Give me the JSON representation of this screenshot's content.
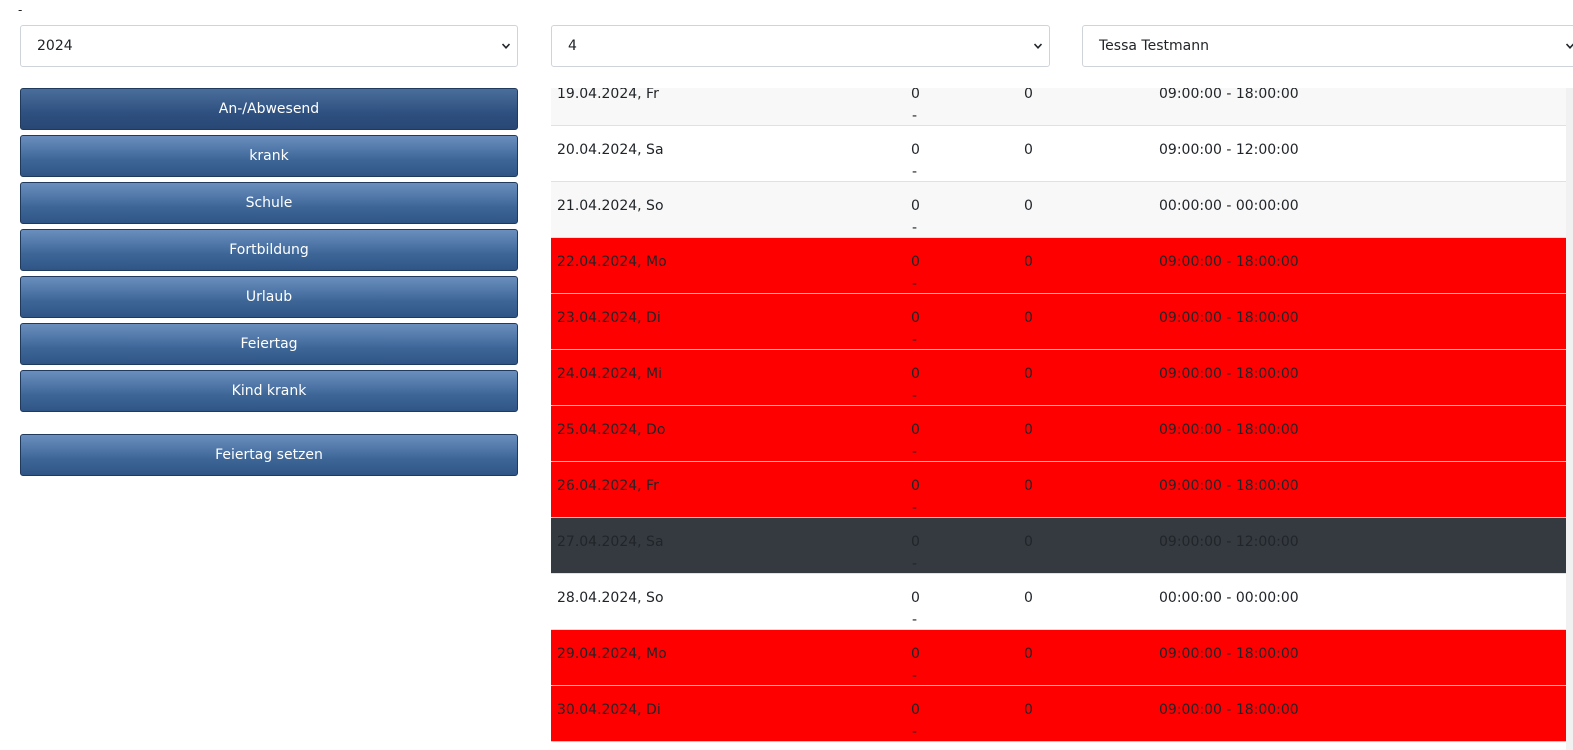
{
  "top_mark": "-",
  "filters": {
    "year": "2024",
    "month": "4",
    "employee": "Tessa Testmann"
  },
  "buttons": [
    {
      "label": "An-/Abwesend",
      "name": "presence-button",
      "active": true
    },
    {
      "label": "krank",
      "name": "sick-button"
    },
    {
      "label": "Schule",
      "name": "school-button"
    },
    {
      "label": "Fortbildung",
      "name": "training-button"
    },
    {
      "label": "Urlaub",
      "name": "vacation-button"
    },
    {
      "label": "Feiertag",
      "name": "holiday-button"
    },
    {
      "label": "Kind krank",
      "name": "child-sick-button"
    }
  ],
  "set_holiday_button": "Feiertag setzen",
  "colors": {
    "red_row": "#ff0000",
    "dark_row": "#343a40",
    "button_blue": "#3d6697"
  },
  "rows": [
    {
      "date": "19.04.2024, Fr",
      "val1": "0",
      "dash": "-",
      "val2": "0",
      "time": "09:00:00 - 18:00:00",
      "style": "light"
    },
    {
      "date": "20.04.2024, Sa",
      "val1": "0",
      "dash": "-",
      "val2": "0",
      "time": "09:00:00 - 12:00:00",
      "style": "white"
    },
    {
      "date": "21.04.2024, So",
      "val1": "0",
      "dash": "-",
      "val2": "0",
      "time": "00:00:00 - 00:00:00",
      "style": "light"
    },
    {
      "date": "22.04.2024, Mo",
      "val1": "0",
      "dash": "-",
      "val2": "0",
      "time": "09:00:00 - 18:00:00",
      "style": "red"
    },
    {
      "date": "23.04.2024, Di",
      "val1": "0",
      "dash": "-",
      "val2": "0",
      "time": "09:00:00 - 18:00:00",
      "style": "red"
    },
    {
      "date": "24.04.2024, Mi",
      "val1": "0",
      "dash": "-",
      "val2": "0",
      "time": "09:00:00 - 18:00:00",
      "style": "red"
    },
    {
      "date": "25.04.2024, Do",
      "val1": "0",
      "dash": "-",
      "val2": "0",
      "time": "09:00:00 - 18:00:00",
      "style": "red"
    },
    {
      "date": "26.04.2024, Fr",
      "val1": "0",
      "dash": "-",
      "val2": "0",
      "time": "09:00:00 - 18:00:00",
      "style": "red"
    },
    {
      "date": "27.04.2024, Sa",
      "val1": "0",
      "dash": "-",
      "val2": "0",
      "time": "09:00:00 - 12:00:00",
      "style": "dark"
    },
    {
      "date": "28.04.2024, So",
      "val1": "0",
      "dash": "-",
      "val2": "0",
      "time": "00:00:00 - 00:00:00",
      "style": "white"
    },
    {
      "date": "29.04.2024, Mo",
      "val1": "0",
      "dash": "-",
      "val2": "0",
      "time": "09:00:00 - 18:00:00",
      "style": "red"
    },
    {
      "date": "30.04.2024, Di",
      "val1": "0",
      "dash": "-",
      "val2": "0",
      "time": "09:00:00 - 18:00:00",
      "style": "red"
    }
  ]
}
